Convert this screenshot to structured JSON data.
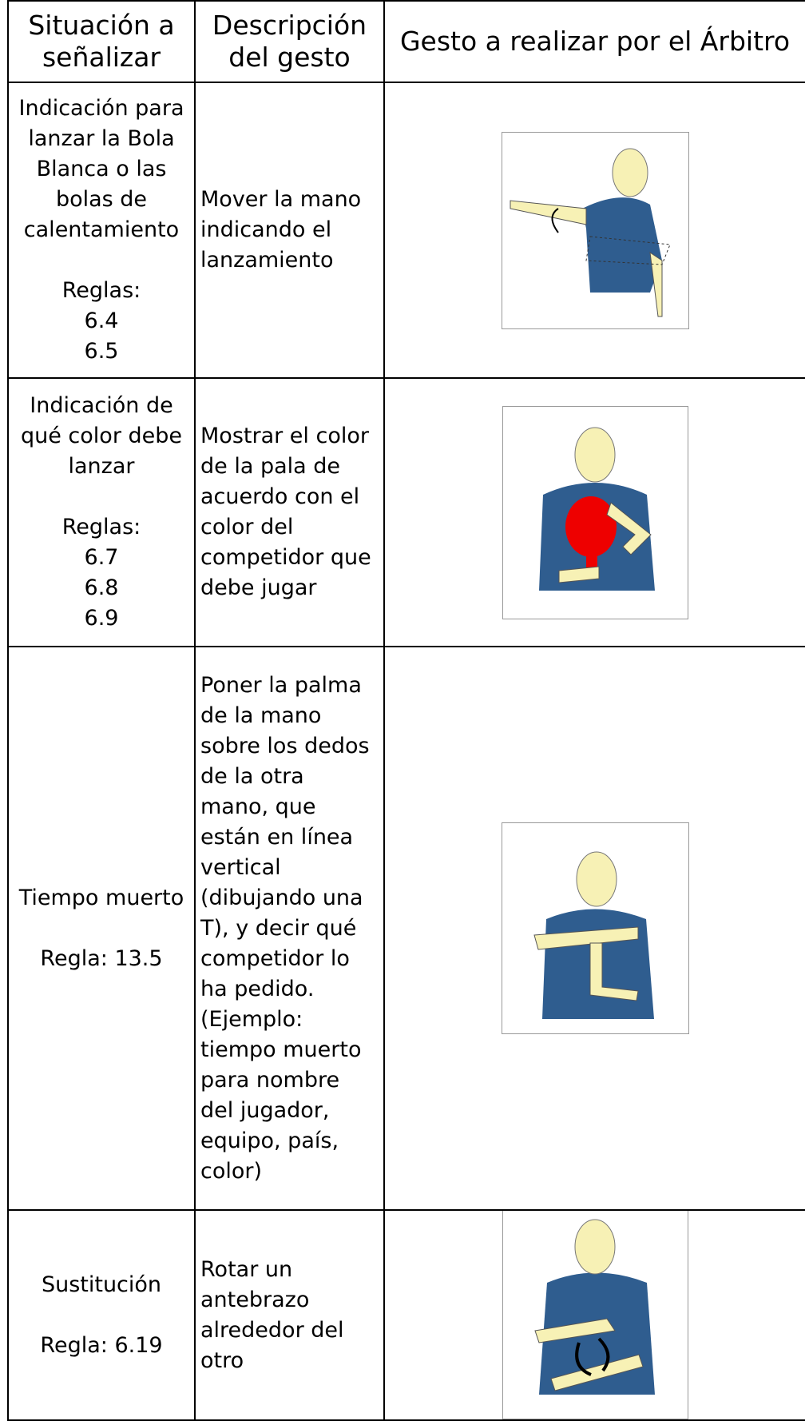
{
  "header": {
    "situation": "Situación a señalizar",
    "description": "Descripción del gesto",
    "gesture": "Gesto a realizar por el Árbitro"
  },
  "rows": [
    {
      "situation": "Indicación para lanzar la Bola Blanca o las bolas de calentamiento",
      "rules": [
        "Reglas:",
        "6.4",
        "6.5"
      ],
      "description": "Mover la mano indicando el lanzamiento"
    },
    {
      "situation": "Indicación de qué color debe lanzar",
      "rules": [
        "Reglas:",
        "6.7",
        "6.8",
        "6.9"
      ],
      "description": "Mostrar el color de la pala de acuerdo con el color del competidor que debe jugar"
    },
    {
      "situation": "Tiempo muerto",
      "rules": [
        "Regla: 13.5"
      ],
      "description": "Poner la palma de la mano sobre los dedos de la otra mano, que están en línea vertical (dibujando una T), y decir qué competidor lo ha pedido. (Ejemplo: tiempo muerto para nombre del jugador, equipo, país, color)"
    },
    {
      "situation": "Sustitución",
      "rules": [
        "Regla: 6.19"
      ],
      "description": "Rotar un antebrazo alrededor del otro"
    }
  ]
}
